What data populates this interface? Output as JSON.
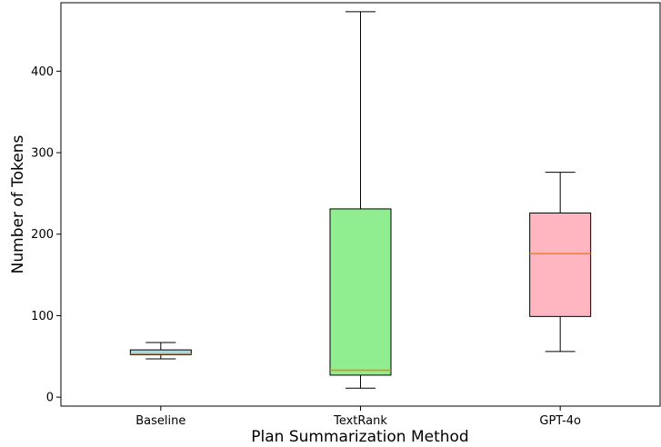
{
  "chart_data": {
    "type": "box",
    "title": "",
    "xlabel": "Plan Summarization Method",
    "ylabel": "Number of Tokens",
    "ylim": [
      -11,
      484
    ],
    "yticks": [
      0,
      100,
      200,
      300,
      400
    ],
    "grid": false,
    "legend": "none",
    "categories": [
      "Baseline",
      "TextRank",
      "GPT-4o"
    ],
    "boxes": [
      {
        "category": "Baseline",
        "whisker_low": 47,
        "q1": 52,
        "median": 53,
        "q3": 58,
        "whisker_high": 67,
        "color": "#add8e6"
      },
      {
        "category": "TextRank",
        "whisker_low": 11,
        "q1": 27,
        "median": 33,
        "q3": 231,
        "whisker_high": 473,
        "color": "#90ee90"
      },
      {
        "category": "GPT-4o",
        "whisker_low": 56,
        "q1": 99,
        "median": 176,
        "q3": 226,
        "whisker_high": 276,
        "color": "#ffb6c1"
      }
    ],
    "median_color": "#ff7f0e"
  }
}
